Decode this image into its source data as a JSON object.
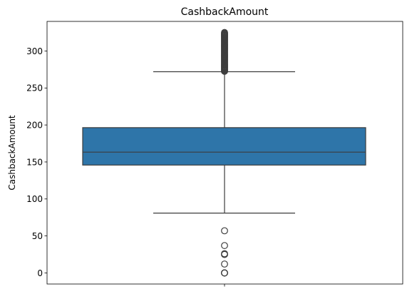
{
  "colors": {
    "box_fill": "#2e75a9",
    "line": "#3d3d3d",
    "axis": "#000000",
    "background": "#ffffff"
  },
  "chart_data": {
    "type": "box",
    "title": "CashbackAmount",
    "xlabel": "",
    "ylabel": "CashbackAmount",
    "ylim": [
      -15,
      340
    ],
    "yticks": [
      0,
      50,
      100,
      150,
      200,
      250,
      300
    ],
    "grid": false,
    "box": {
      "q1": 145.8,
      "median": 163.3,
      "q3": 196.4,
      "whisker_low": 80.9,
      "whisker_high": 272.0
    },
    "outliers": [
      0,
      0,
      0,
      0,
      12,
      25,
      25,
      26,
      37,
      57,
      272.5,
      273,
      274,
      275,
      276,
      277,
      278,
      279,
      280,
      281,
      282,
      283,
      284,
      285,
      286,
      287,
      288,
      289,
      290,
      291,
      292,
      293,
      294,
      295,
      296,
      297,
      298,
      299,
      300,
      301,
      302,
      303,
      304,
      305,
      306,
      307,
      308,
      309,
      310,
      311,
      312,
      313,
      314,
      315,
      316,
      317,
      318,
      319,
      320,
      321,
      322,
      323,
      324,
      325
    ]
  }
}
